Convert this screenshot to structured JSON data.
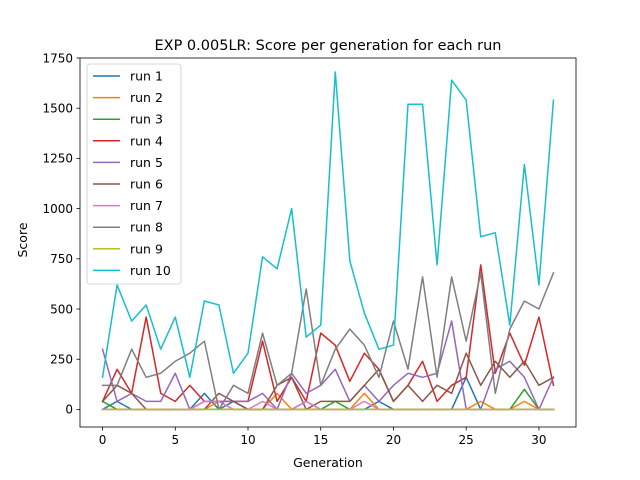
{
  "chart_data": {
    "type": "line",
    "title": "EXP 0.005LR: Score per generation for each run",
    "xlabel": "Generation",
    "ylabel": "Score",
    "xlim": [
      -1.55,
      32.55
    ],
    "ylim": [
      -87.5,
      1750
    ],
    "xticks": [
      0,
      5,
      10,
      15,
      20,
      25,
      30
    ],
    "yticks": [
      0,
      250,
      500,
      750,
      1000,
      1250,
      1500,
      1750
    ],
    "grid": false,
    "legend_position": "top-left",
    "x": [
      0,
      1,
      2,
      3,
      4,
      5,
      6,
      7,
      8,
      9,
      10,
      11,
      12,
      13,
      14,
      15,
      16,
      17,
      18,
      19,
      20,
      21,
      22,
      23,
      24,
      25,
      26,
      27,
      28,
      29,
      30,
      31
    ],
    "series": [
      {
        "name": "run 1",
        "color": "#1f77b4",
        "values": [
          0,
          40,
          0,
          0,
          0,
          0,
          0,
          80,
          0,
          40,
          0,
          0,
          0,
          0,
          40,
          0,
          0,
          0,
          0,
          40,
          0,
          0,
          0,
          0,
          0,
          160,
          0,
          0,
          0,
          0,
          0,
          0
        ]
      },
      {
        "name": "run 2",
        "color": "#ff7f0e",
        "values": [
          0,
          0,
          0,
          0,
          0,
          0,
          0,
          0,
          40,
          0,
          0,
          0,
          80,
          0,
          0,
          0,
          0,
          0,
          80,
          0,
          0,
          0,
          0,
          0,
          0,
          0,
          40,
          0,
          0,
          40,
          0,
          0
        ]
      },
      {
        "name": "run 3",
        "color": "#2ca02c",
        "values": [
          40,
          0,
          0,
          0,
          0,
          0,
          0,
          0,
          0,
          0,
          0,
          0,
          0,
          0,
          0,
          0,
          40,
          0,
          0,
          0,
          0,
          0,
          0,
          0,
          0,
          0,
          0,
          0,
          0,
          100,
          0,
          0
        ]
      },
      {
        "name": "run 4",
        "color": "#d62728",
        "values": [
          40,
          200,
          80,
          460,
          80,
          40,
          120,
          40,
          40,
          40,
          40,
          340,
          40,
          160,
          40,
          380,
          320,
          140,
          280,
          200,
          40,
          120,
          240,
          40,
          120,
          160,
          720,
          180,
          380,
          220,
          460,
          120
        ]
      },
      {
        "name": "run 5",
        "color": "#9467bd",
        "values": [
          300,
          40,
          80,
          40,
          40,
          180,
          0,
          40,
          40,
          40,
          40,
          80,
          0,
          180,
          80,
          120,
          200,
          40,
          120,
          40,
          120,
          180,
          160,
          180,
          440,
          0,
          0,
          200,
          240,
          160,
          0,
          160
        ]
      },
      {
        "name": "run 6",
        "color": "#8c564b",
        "values": [
          40,
          120,
          80,
          0,
          0,
          0,
          0,
          0,
          80,
          40,
          0,
          0,
          120,
          160,
          0,
          40,
          40,
          40,
          120,
          200,
          40,
          120,
          40,
          120,
          80,
          280,
          120,
          240,
          160,
          240,
          120,
          160
        ]
      },
      {
        "name": "run 7",
        "color": "#e377c2",
        "values": [
          0,
          0,
          0,
          0,
          0,
          0,
          0,
          40,
          40,
          0,
          0,
          40,
          0,
          0,
          40,
          0,
          0,
          0,
          40,
          0,
          0,
          0,
          0,
          0,
          0,
          0,
          0,
          0,
          0,
          0,
          0,
          0
        ]
      },
      {
        "name": "run 8",
        "color": "#7f7f7f",
        "values": [
          120,
          120,
          300,
          160,
          180,
          240,
          280,
          340,
          0,
          120,
          80,
          380,
          120,
          180,
          600,
          120,
          300,
          400,
          320,
          160,
          440,
          200,
          660,
          160,
          660,
          340,
          680,
          80,
          400,
          540,
          500,
          680
        ]
      },
      {
        "name": "run 9",
        "color": "#bcbd22",
        "values": [
          0,
          0,
          0,
          0,
          0,
          0,
          0,
          0,
          0,
          0,
          0,
          0,
          0,
          0,
          0,
          0,
          0,
          0,
          0,
          0,
          0,
          0,
          0,
          0,
          0,
          0,
          0,
          0,
          0,
          0,
          0,
          0
        ]
      },
      {
        "name": "run 10",
        "color": "#17becf",
        "values": [
          160,
          620,
          440,
          520,
          300,
          460,
          160,
          540,
          520,
          180,
          280,
          760,
          700,
          1000,
          360,
          420,
          1680,
          740,
          480,
          300,
          320,
          1520,
          1520,
          720,
          1640,
          1540,
          860,
          880,
          420,
          1220,
          620,
          1540
        ]
      }
    ]
  }
}
